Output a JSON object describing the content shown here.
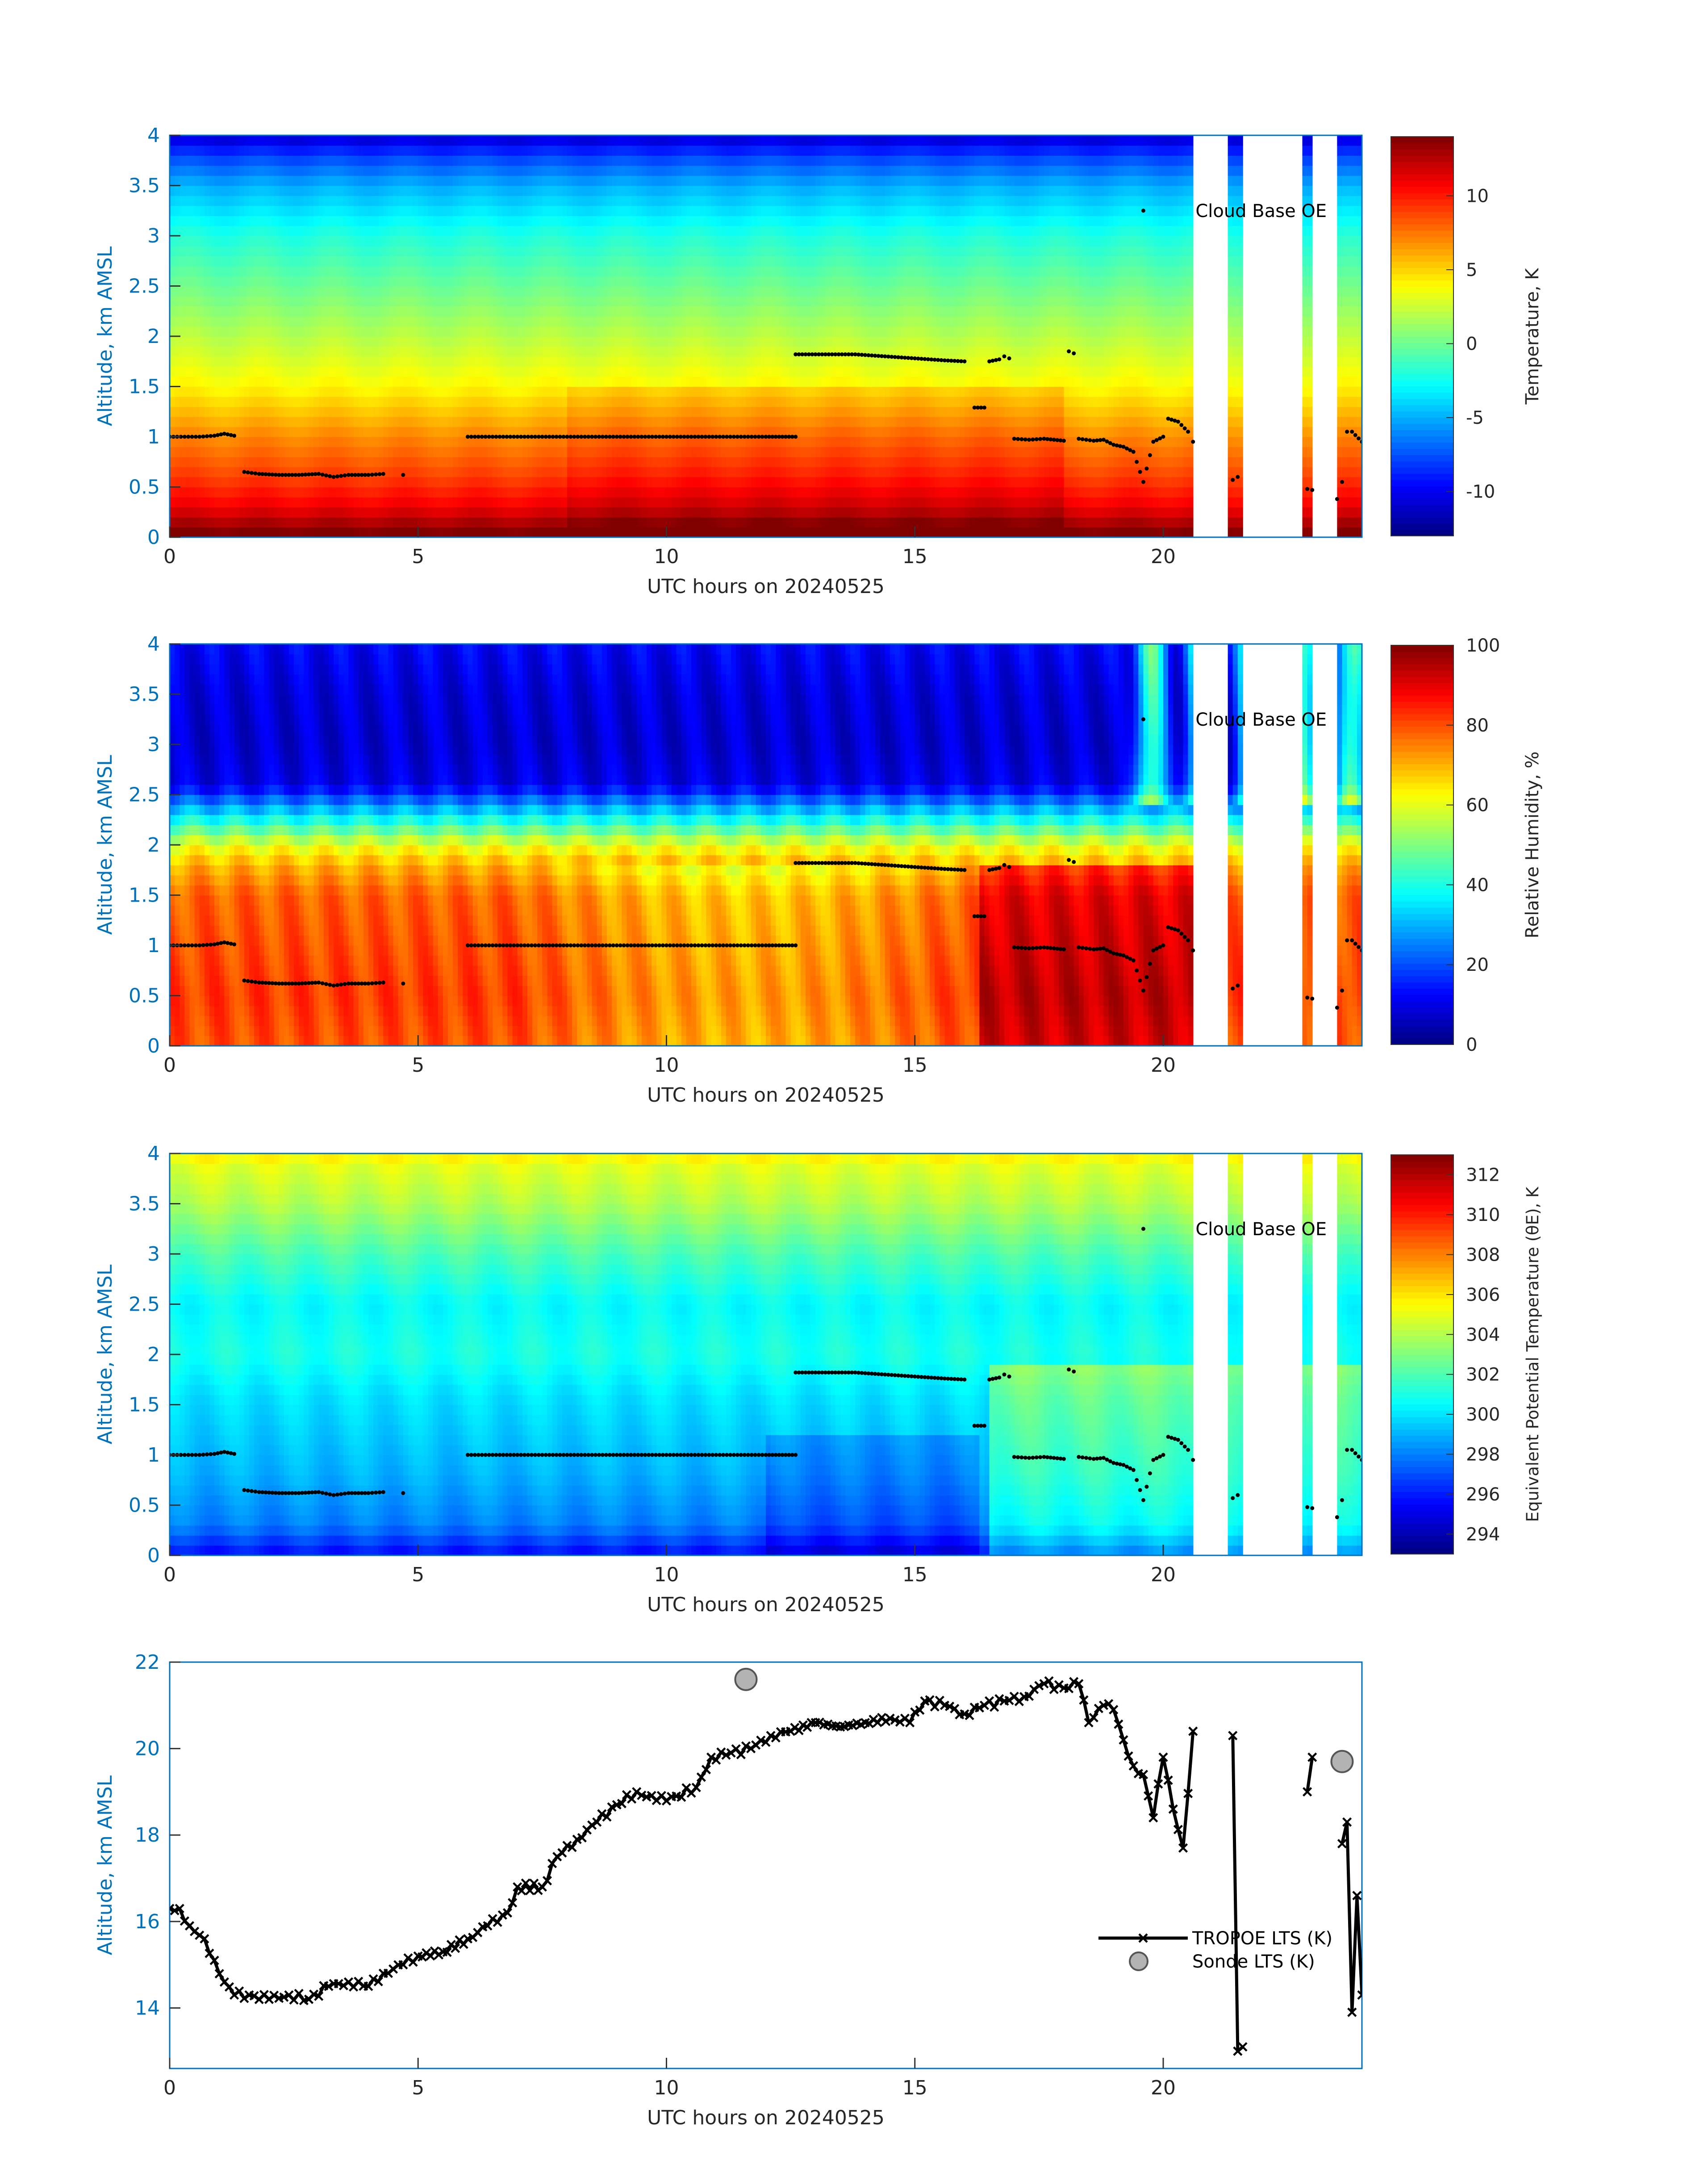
{
  "figure": {
    "date_label": "UTC hours on 20240525"
  },
  "chart_data": [
    {
      "type": "heatmap",
      "panel": "temperature",
      "xlabel": "UTC hours on 20240525",
      "ylabel": "Altitude, km AMSL",
      "xlim": [
        0,
        24
      ],
      "ylim": [
        0,
        4
      ],
      "xticks": [
        0,
        5,
        10,
        15,
        20
      ],
      "yticks": [
        0,
        0.5,
        1,
        1.5,
        2,
        2.5,
        3,
        3.5,
        4
      ],
      "colorbar_label": "Temperature, K",
      "colorbar_range": [
        -13,
        14
      ],
      "colorbar_ticks": [
        -10,
        -5,
        0,
        5,
        10
      ],
      "colormap": "jet",
      "data_gaps": [
        [
          20.6,
          21.3
        ],
        [
          21.6,
          22.8
        ],
        [
          23.0,
          23.5
        ]
      ],
      "altitude_profile_values": [
        [
          0.05,
          14
        ],
        [
          0.3,
          11
        ],
        [
          0.6,
          9
        ],
        [
          1.0,
          7
        ],
        [
          1.5,
          4
        ],
        [
          2.0,
          2
        ],
        [
          2.5,
          0
        ],
        [
          3.0,
          -2
        ],
        [
          3.5,
          -5
        ],
        [
          3.8,
          -8
        ],
        [
          4.0,
          -11
        ]
      ],
      "annotation": "Cloud Base OE",
      "series_name": "Cloud Base OE"
    },
    {
      "type": "heatmap",
      "panel": "relative_humidity",
      "xlabel": "UTC hours on 20240525",
      "ylabel": "Altitude, km AMSL",
      "xlim": [
        0,
        24
      ],
      "ylim": [
        0,
        4
      ],
      "xticks": [
        0,
        5,
        10,
        15,
        20
      ],
      "yticks": [
        0,
        0.5,
        1,
        1.5,
        2,
        2.5,
        3,
        3.5,
        4
      ],
      "colorbar_label": "Relative Humidity, %",
      "colorbar_range": [
        0,
        100
      ],
      "colorbar_ticks": [
        0,
        20,
        40,
        60,
        80,
        100
      ],
      "colormap": "jet",
      "data_gaps": [
        [
          20.6,
          21.3
        ],
        [
          21.6,
          22.8
        ],
        [
          23.0,
          23.5
        ]
      ],
      "altitude_profile_values": [
        [
          0.05,
          80
        ],
        [
          0.5,
          82
        ],
        [
          1.0,
          80
        ],
        [
          1.5,
          78
        ],
        [
          1.8,
          70
        ],
        [
          2.0,
          60
        ],
        [
          2.3,
          35
        ],
        [
          2.6,
          10
        ],
        [
          3.0,
          8
        ],
        [
          3.5,
          9
        ],
        [
          4.0,
          12
        ]
      ],
      "annotation": "Cloud Base OE",
      "series_name": "Cloud Base OE"
    },
    {
      "type": "heatmap",
      "panel": "equivalent_potential_temperature",
      "xlabel": "UTC hours on 20240525",
      "ylabel": "Altitude, km AMSL",
      "xlim": [
        0,
        24
      ],
      "ylim": [
        0,
        4
      ],
      "xticks": [
        0,
        5,
        10,
        15,
        20
      ],
      "yticks": [
        0,
        0.5,
        1,
        1.5,
        2,
        2.5,
        3,
        3.5,
        4
      ],
      "colorbar_label": "Equivalent Potential Temperature (θE), K",
      "colorbar_range": [
        293,
        313
      ],
      "colorbar_ticks": [
        294,
        296,
        298,
        300,
        302,
        304,
        306,
        308,
        310,
        312
      ],
      "colormap": "jet",
      "data_gaps": [
        [
          20.6,
          21.3
        ],
        [
          21.6,
          22.8
        ],
        [
          23.0,
          23.5
        ]
      ],
      "altitude_profile_values": [
        [
          0.05,
          296
        ],
        [
          0.3,
          298
        ],
        [
          0.8,
          299
        ],
        [
          1.2,
          299.5
        ],
        [
          1.6,
          300
        ],
        [
          2.0,
          301
        ],
        [
          2.5,
          300.5
        ],
        [
          3.0,
          302
        ],
        [
          3.5,
          304
        ],
        [
          3.9,
          305
        ],
        [
          4.0,
          306
        ]
      ],
      "annotation": "Cloud Base OE",
      "series_name": "Cloud Base OE"
    },
    {
      "type": "line",
      "panel": "lts",
      "xlabel": "UTC hours on 20240525",
      "ylabel": "Altitude, km AMSL",
      "xlim": [
        0,
        24
      ],
      "ylim": [
        12.6,
        22
      ],
      "xticks": [
        0,
        5,
        10,
        15,
        20
      ],
      "yticks": [
        14,
        16,
        18,
        20,
        22
      ],
      "legend_position": "right",
      "series": [
        {
          "name": "TROPOE LTS (K)",
          "marker": "x",
          "segments": [
            [
              [
                0,
                16.3
              ],
              [
                0.2,
                16.3
              ],
              [
                0.4,
                15.9
              ],
              [
                0.7,
                15.6
              ],
              [
                0.9,
                15.1
              ],
              [
                1.1,
                14.6
              ],
              [
                1.3,
                14.3
              ],
              [
                1.6,
                14.3
              ],
              [
                2.0,
                14.2
              ],
              [
                2.4,
                14.3
              ],
              [
                2.8,
                14.2
              ],
              [
                3.2,
                14.5
              ],
              [
                3.6,
                14.6
              ],
              [
                4.0,
                14.5
              ],
              [
                4.3,
                14.8
              ],
              [
                4.7,
                15.0
              ],
              [
                5.0,
                15.2
              ],
              [
                5.5,
                15.3
              ],
              [
                6.0,
                15.6
              ],
              [
                6.4,
                15.9
              ],
              [
                6.8,
                16.2
              ],
              [
                7.0,
                16.8
              ],
              [
                7.5,
                16.8
              ],
              [
                7.8,
                17.5
              ],
              [
                8.2,
                17.9
              ],
              [
                8.6,
                18.3
              ],
              [
                9.0,
                18.7
              ],
              [
                9.4,
                19.0
              ],
              [
                9.8,
                18.8
              ],
              [
                10.2,
                18.9
              ],
              [
                10.6,
                19.1
              ],
              [
                10.9,
                19.8
              ],
              [
                11.3,
                19.9
              ],
              [
                11.7,
                20.0
              ],
              [
                12.1,
                20.3
              ],
              [
                12.5,
                20.4
              ],
              [
                13.0,
                20.6
              ],
              [
                13.5,
                20.5
              ],
              [
                14.0,
                20.6
              ],
              [
                14.5,
                20.7
              ],
              [
                14.9,
                20.6
              ],
              [
                15.2,
                21.1
              ],
              [
                15.6,
                21.0
              ],
              [
                16.0,
                20.8
              ],
              [
                16.4,
                21.0
              ],
              [
                16.8,
                21.1
              ],
              [
                17.2,
                21.2
              ],
              [
                17.6,
                21.5
              ],
              [
                18.0,
                21.4
              ],
              [
                18.3,
                21.5
              ],
              [
                18.5,
                20.6
              ],
              [
                18.8,
                21.0
              ],
              [
                19.0,
                20.9
              ],
              [
                19.2,
                20.2
              ],
              [
                19.4,
                19.6
              ],
              [
                19.6,
                19.4
              ],
              [
                19.8,
                18.4
              ],
              [
                20.0,
                19.8
              ],
              [
                20.2,
                18.6
              ],
              [
                20.4,
                17.7
              ],
              [
                20.6,
                20.4
              ]
            ],
            [
              [
                21.4,
                20.3
              ],
              [
                21.5,
                13.0
              ],
              [
                21.6,
                13.1
              ]
            ],
            [
              [
                22.9,
                19.0
              ],
              [
                23.0,
                19.8
              ]
            ],
            [
              [
                23.6,
                17.8
              ],
              [
                23.7,
                18.3
              ],
              [
                23.8,
                13.9
              ],
              [
                23.9,
                16.6
              ],
              [
                24.0,
                14.3
              ]
            ]
          ]
        },
        {
          "name": "Sonde LTS (K)",
          "marker": "o",
          "points": [
            [
              11.6,
              21.6
            ],
            [
              23.6,
              19.7
            ]
          ]
        }
      ]
    }
  ],
  "cloud_base": [
    [
      [
        0.0,
        1.0
      ],
      [
        0.3,
        1.0
      ],
      [
        0.6,
        1.0
      ],
      [
        0.9,
        1.01
      ],
      [
        1.1,
        1.03
      ],
      [
        1.3,
        1.01
      ]
    ],
    [
      [
        1.5,
        0.65
      ],
      [
        1.8,
        0.63
      ],
      [
        2.2,
        0.62
      ],
      [
        2.6,
        0.62
      ],
      [
        3.0,
        0.63
      ],
      [
        3.3,
        0.6
      ],
      [
        3.6,
        0.62
      ],
      [
        4.0,
        0.62
      ],
      [
        4.3,
        0.63
      ]
    ],
    [
      [
        4.7,
        0.62
      ]
    ],
    [
      [
        6.0,
        1.0
      ],
      [
        7.0,
        1.0
      ],
      [
        8.0,
        1.0
      ],
      [
        9.0,
        1.0
      ],
      [
        10.0,
        1.0
      ],
      [
        11.0,
        1.0
      ],
      [
        12.0,
        1.0
      ],
      [
        12.6,
        1.0
      ]
    ],
    [
      [
        12.6,
        1.82
      ],
      [
        13.2,
        1.82
      ],
      [
        13.8,
        1.82
      ],
      [
        14.4,
        1.8
      ],
      [
        15.0,
        1.78
      ],
      [
        15.6,
        1.76
      ],
      [
        16.0,
        1.75
      ]
    ],
    [
      [
        16.2,
        1.29
      ],
      [
        16.4,
        1.29
      ]
    ],
    [
      [
        16.5,
        1.75
      ],
      [
        16.7,
        1.77
      ],
      [
        16.8,
        1.8
      ],
      [
        16.9,
        1.78
      ]
    ],
    [
      [
        17.0,
        0.98
      ],
      [
        17.3,
        0.97
      ],
      [
        17.6,
        0.98
      ],
      [
        18.0,
        0.96
      ]
    ],
    [
      [
        18.1,
        1.85
      ],
      [
        18.2,
        1.83
      ]
    ],
    [
      [
        18.3,
        0.98
      ],
      [
        18.6,
        0.96
      ],
      [
        18.8,
        0.97
      ],
      [
        19.0,
        0.92
      ],
      [
        19.2,
        0.9
      ],
      [
        19.4,
        0.85
      ],
      [
        19.6,
        0.55
      ],
      [
        19.8,
        0.95
      ],
      [
        20.0,
        1.0
      ],
      [
        20.1,
        1.18
      ],
      [
        20.3,
        1.15
      ],
      [
        20.5,
        1.05
      ],
      [
        20.6,
        0.95
      ]
    ],
    [
      [
        21.4,
        0.57
      ],
      [
        21.5,
        0.6
      ]
    ],
    [
      [
        22.9,
        0.48
      ],
      [
        23.0,
        0.47
      ]
    ],
    [
      [
        23.5,
        0.38
      ],
      [
        23.6,
        0.55
      ],
      [
        23.7,
        1.05
      ],
      [
        23.8,
        1.05
      ],
      [
        24.0,
        0.95
      ]
    ],
    [
      [
        19.6,
        3.25
      ]
    ]
  ]
}
